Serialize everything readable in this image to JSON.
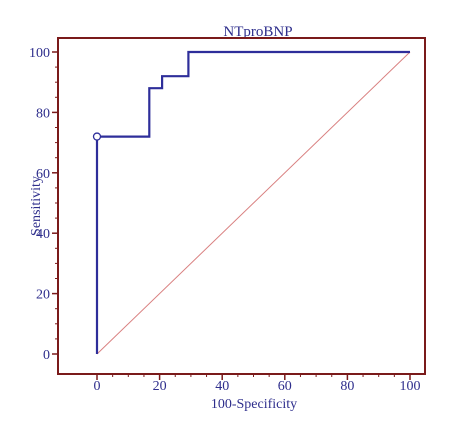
{
  "chart_data": {
    "type": "line",
    "title": "NTproBNP",
    "xlabel": "100-Specificity",
    "ylabel": "Sensitivity",
    "xlim": [
      0,
      100
    ],
    "ylim": [
      0,
      100
    ],
    "xticks": [
      0,
      20,
      40,
      60,
      80,
      100
    ],
    "yticks": [
      0,
      20,
      40,
      60,
      80,
      100
    ],
    "grid": false,
    "series": [
      {
        "style": "step",
        "color": "#2e2e9a",
        "points": [
          [
            0,
            0
          ],
          [
            0,
            72
          ],
          [
            16.7,
            72
          ],
          [
            16.7,
            88
          ],
          [
            20.8,
            88
          ],
          [
            20.8,
            92
          ],
          [
            29.2,
            92
          ],
          [
            29.2,
            100
          ],
          [
            100,
            100
          ]
        ]
      },
      {
        "style": "diagonal",
        "color": "#d98080",
        "points": [
          [
            0,
            0
          ],
          [
            100,
            100
          ]
        ]
      }
    ],
    "markers": [
      {
        "x": 0,
        "y": 72,
        "shape": "open-circle"
      }
    ],
    "frame_color": "#7a1a1a"
  }
}
